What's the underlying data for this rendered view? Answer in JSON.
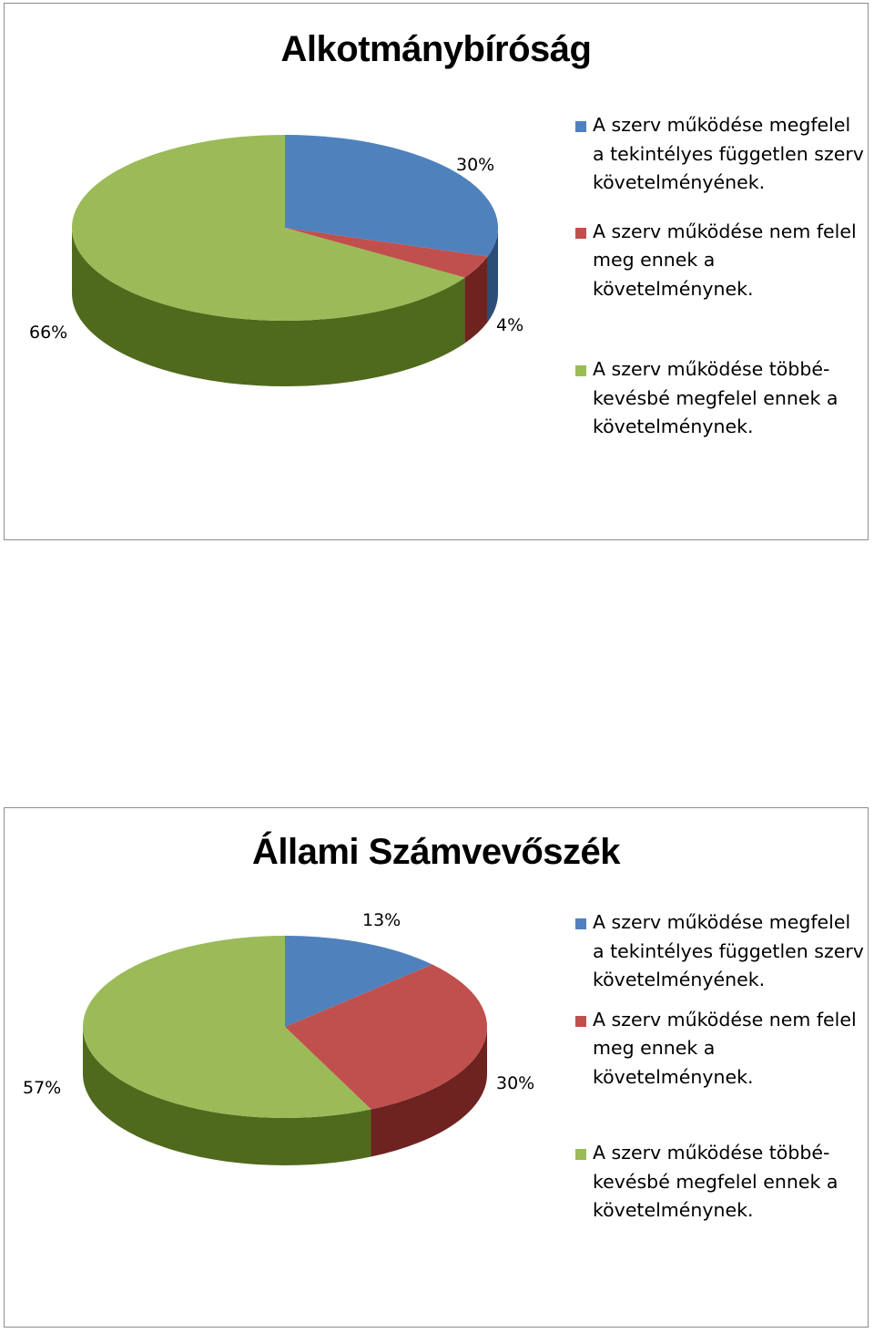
{
  "charts": [
    {
      "title": "Alkotmánybíróság",
      "labels": [
        "30%",
        "4%",
        "66%"
      ],
      "legend": [
        {
          "text": "A szerv működése megfelel a tekintélyes független szerv követelményének.",
          "color": "#4f81bd"
        },
        {
          "text": "A szerv működése nem felel meg ennek a követelménynek.",
          "color": "#c0504d"
        },
        {
          "text": "A szerv működése többé-kevésbé megfelel ennek a követelménynek.",
          "color": "#9bbb59"
        }
      ]
    },
    {
      "title": "Állami Számvevőszék",
      "labels": [
        "13%",
        "30%",
        "57%"
      ],
      "legend": [
        {
          "text": "A szerv működése megfelel a tekintélyes független szerv követelményének.",
          "color": "#4f81bd"
        },
        {
          "text": "A szerv működése nem felel meg ennek a követelménynek.",
          "color": "#c0504d"
        },
        {
          "text": "A szerv működése többé-kevésbé megfelel ennek a követelménynek.",
          "color": "#9bbb59"
        }
      ]
    }
  ],
  "chart_data": [
    {
      "type": "pie",
      "style": "3d",
      "title": "Alkotmánybíróság",
      "legend_position": "right",
      "categories": [
        "A szerv működése megfelel a tekintélyes független szerv követelményének.",
        "A szerv működése nem felel meg ennek a követelménynek.",
        "A szerv működése többé-kevésbé megfelel ennek a követelménynek."
      ],
      "values": [
        30,
        4,
        66
      ],
      "colors": [
        "#4f81bd",
        "#c0504d",
        "#9bbb59"
      ],
      "side_colors": [
        "#2c4d75",
        "#6e2321",
        "#4f6a1c"
      ]
    },
    {
      "type": "pie",
      "style": "3d",
      "title": "Állami Számvevőszék",
      "legend_position": "right",
      "categories": [
        "A szerv működése megfelel a tekintélyes független szerv követelményének.",
        "A szerv működése nem felel meg ennek a követelménynek.",
        "A szerv működése többé-kevésbé megfelel ennek a követelménynek."
      ],
      "values": [
        13,
        30,
        57
      ],
      "colors": [
        "#4f81bd",
        "#c0504d",
        "#9bbb59"
      ],
      "side_colors": [
        "#2c4d75",
        "#6e2321",
        "#4f6a1c"
      ]
    }
  ]
}
